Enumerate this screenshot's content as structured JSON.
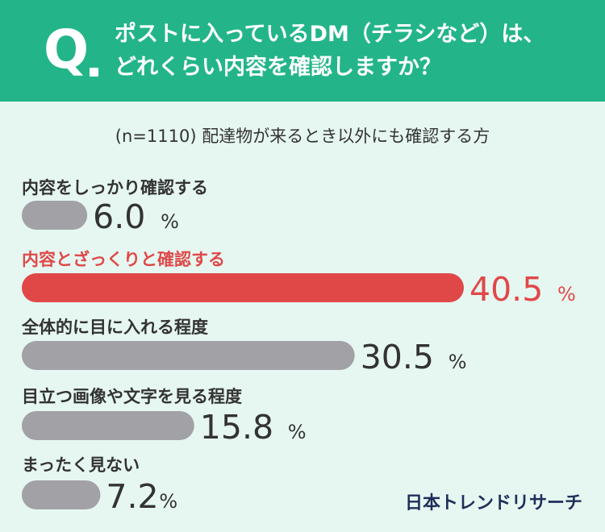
{
  "header": {
    "q_mark": "Q",
    "question_line_1": "ポストに入っているDM（チラシなど）は、",
    "question_line_2": "どれくらい内容を確認しますか？"
  },
  "sample_note": "(n=1110) 配達物が来るとき以外にも確認する方",
  "brand": "日本トレンドリサーチ",
  "colors": {
    "header_bg": "#23b589",
    "page_bg": "#e6f7f1",
    "bar_default": "#a1a1a6",
    "bar_highlight": "#e04848",
    "text": "#333333",
    "highlight_text": "#e04848"
  },
  "chart_data": {
    "type": "bar",
    "orientation": "horizontal",
    "categories": [
      "内容をしっかり確認する",
      "内容とざっくりと確認する",
      "全体的に目に入れる程度",
      "目立つ画像や文字を見る程度",
      "まったく見ない"
    ],
    "values": [
      6.0,
      40.5,
      30.5,
      15.8,
      7.2
    ],
    "value_labels": [
      "6.0",
      "40.5",
      "30.5",
      "15.8",
      "7.2"
    ],
    "unit": "%",
    "highlight_index": 1
  }
}
